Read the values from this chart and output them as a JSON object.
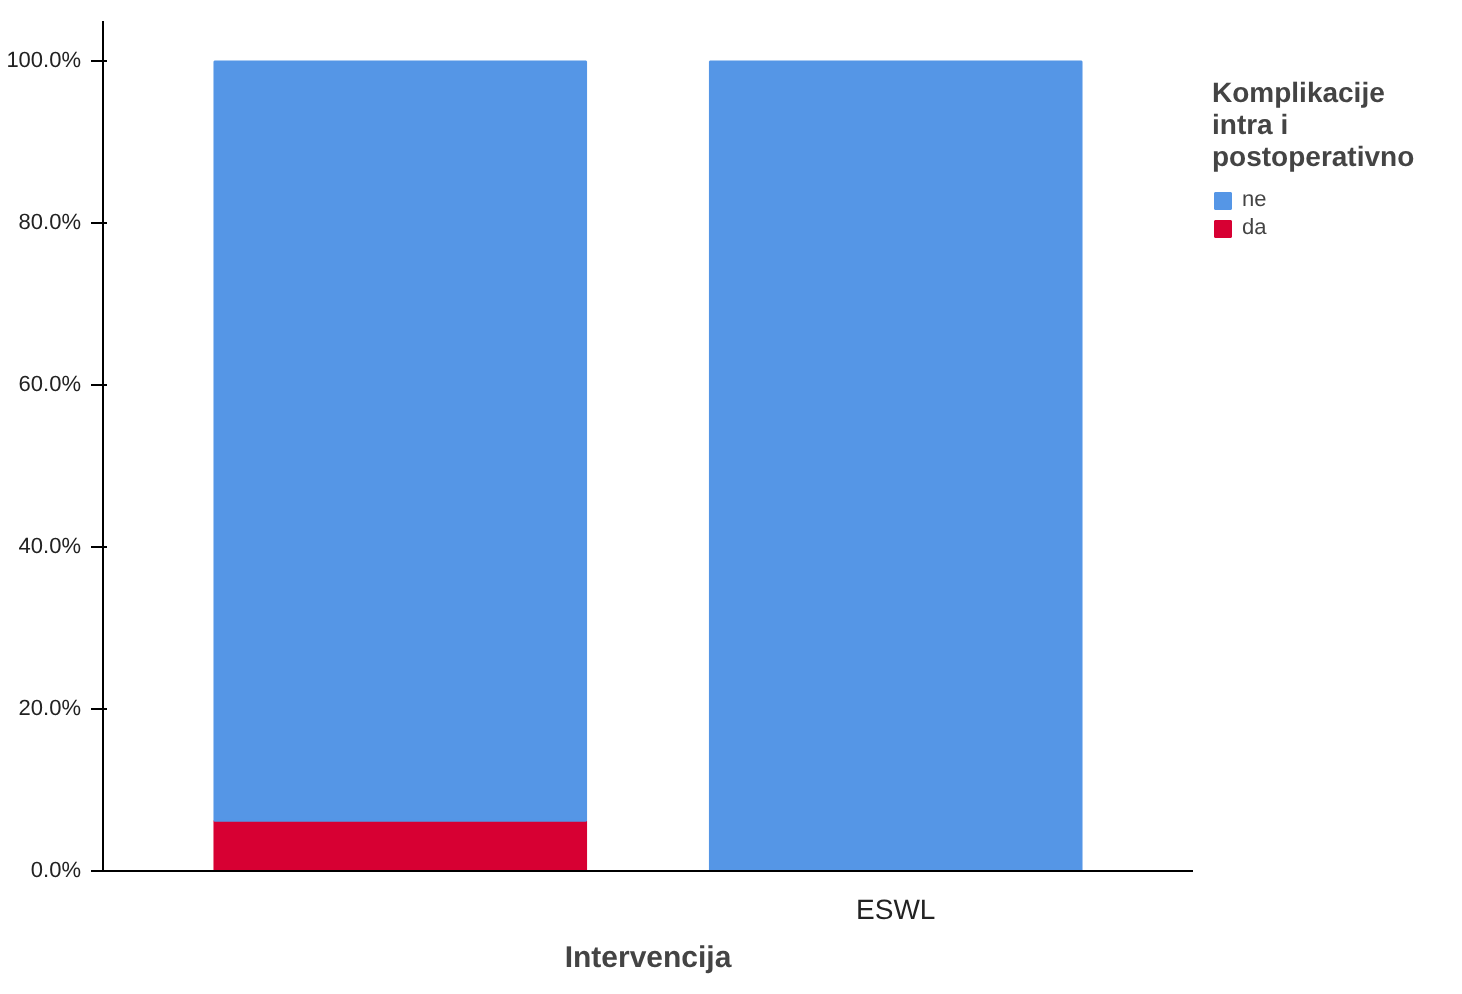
{
  "chart_data": {
    "type": "bar",
    "stacked": true,
    "categories": [
      null,
      "ESWL"
    ],
    "series": [
      {
        "name": "da",
        "color": "#d70033",
        "values": [
          6.2,
          0
        ]
      },
      {
        "name": "ne",
        "color": "#5596e6",
        "values": [
          93.8,
          100
        ]
      }
    ],
    "xlabel": "Intervencija",
    "legend_title": "Komplikacije intra i postoperativno",
    "legend": "top right",
    "ylim": [
      0,
      105
    ],
    "yticks": [
      {
        "value": 0,
        "label": "0.0%"
      },
      {
        "value": 20,
        "label": "20.0%"
      },
      {
        "value": 40,
        "label": "40.0%"
      },
      {
        "value": 60,
        "label": "60.0%"
      },
      {
        "value": 80,
        "label": "80.0%"
      },
      {
        "value": 100,
        "label": "100.0%"
      }
    ],
    "grid": false
  }
}
